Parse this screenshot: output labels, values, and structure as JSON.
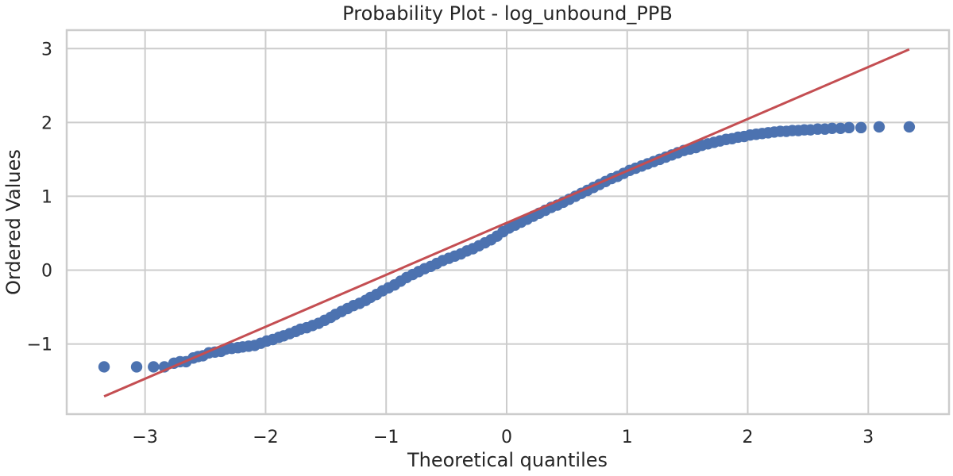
{
  "chart_data": {
    "type": "scatter",
    "title": "Probability Plot - log_unbound_PPB",
    "xlabel": "Theoretical quantiles",
    "ylabel": "Ordered Values",
    "xlim": [
      -3.65,
      3.67
    ],
    "ylim": [
      -1.95,
      3.25
    ],
    "xticks": [
      -3,
      -2,
      -1,
      0,
      1,
      2,
      3
    ],
    "xtick_labels": [
      "−3",
      "−2",
      "−1",
      "0",
      "1",
      "2",
      "3"
    ],
    "yticks": [
      -1,
      0,
      1,
      2,
      3
    ],
    "ytick_labels": [
      "−1",
      "0",
      "1",
      "2",
      "3"
    ],
    "grid": true,
    "legend": "none",
    "colors": {
      "points": "#4c72b0",
      "fit_line": "#c44e52",
      "grid": "#cccccc",
      "text": "#262626"
    },
    "series": [
      {
        "kind": "points",
        "x": [
          -3.34,
          -3.07,
          -2.93,
          -2.84,
          -2.76,
          -2.71,
          -2.66,
          -2.6,
          -2.56,
          -2.52,
          -2.47,
          -2.42,
          -2.37,
          -2.33,
          -2.28,
          -2.23,
          -2.19,
          -2.14,
          -2.09,
          -2.04,
          -1.99,
          -1.94,
          -1.89,
          -1.85,
          -1.8,
          -1.75,
          -1.71,
          -1.66,
          -1.61,
          -1.56,
          -1.51,
          -1.46,
          -1.42,
          -1.37,
          -1.32,
          -1.27,
          -1.22,
          -1.17,
          -1.13,
          -1.08,
          -1.03,
          -0.98,
          -0.93,
          -0.88,
          -0.83,
          -0.78,
          -0.73,
          -0.68,
          -0.63,
          -0.58,
          -0.53,
          -0.48,
          -0.43,
          -0.38,
          -0.33,
          -0.28,
          -0.23,
          -0.18,
          -0.13,
          -0.08,
          -0.03,
          0.02,
          0.07,
          0.12,
          0.17,
          0.22,
          0.27,
          0.32,
          0.37,
          0.42,
          0.47,
          0.52,
          0.57,
          0.62,
          0.67,
          0.72,
          0.77,
          0.82,
          0.87,
          0.92,
          0.97,
          1.02,
          1.07,
          1.12,
          1.17,
          1.22,
          1.27,
          1.32,
          1.37,
          1.42,
          1.47,
          1.52,
          1.57,
          1.62,
          1.67,
          1.72,
          1.77,
          1.82,
          1.87,
          1.92,
          1.97,
          2.02,
          2.07,
          2.12,
          2.17,
          2.22,
          2.27,
          2.32,
          2.37,
          2.42,
          2.47,
          2.52,
          2.58,
          2.64,
          2.7,
          2.77,
          2.84,
          2.94,
          3.09,
          3.34
        ],
        "y": [
          -1.31,
          -1.31,
          -1.31,
          -1.31,
          -1.26,
          -1.24,
          -1.24,
          -1.19,
          -1.17,
          -1.16,
          -1.12,
          -1.11,
          -1.1,
          -1.07,
          -1.06,
          -1.05,
          -1.04,
          -1.03,
          -1.02,
          -0.99,
          -0.96,
          -0.94,
          -0.91,
          -0.89,
          -0.86,
          -0.83,
          -0.8,
          -0.78,
          -0.75,
          -0.72,
          -0.68,
          -0.64,
          -0.6,
          -0.56,
          -0.52,
          -0.48,
          -0.45,
          -0.41,
          -0.37,
          -0.33,
          -0.28,
          -0.24,
          -0.2,
          -0.15,
          -0.1,
          -0.06,
          -0.02,
          0.02,
          0.05,
          0.09,
          0.13,
          0.16,
          0.19,
          0.22,
          0.26,
          0.29,
          0.33,
          0.37,
          0.41,
          0.46,
          0.52,
          0.57,
          0.61,
          0.65,
          0.69,
          0.73,
          0.77,
          0.81,
          0.85,
          0.88,
          0.92,
          0.96,
          1.0,
          1.04,
          1.08,
          1.12,
          1.16,
          1.2,
          1.24,
          1.27,
          1.31,
          1.35,
          1.38,
          1.41,
          1.44,
          1.47,
          1.5,
          1.53,
          1.56,
          1.59,
          1.62,
          1.64,
          1.66,
          1.69,
          1.71,
          1.73,
          1.75,
          1.77,
          1.78,
          1.8,
          1.81,
          1.83,
          1.84,
          1.85,
          1.86,
          1.87,
          1.88,
          1.88,
          1.89,
          1.89,
          1.9,
          1.9,
          1.91,
          1.91,
          1.92,
          1.92,
          1.93,
          1.93,
          1.94,
          1.94
        ]
      },
      {
        "kind": "fit-line",
        "x": [
          -3.34,
          3.34
        ],
        "y": [
          -1.71,
          2.99
        ]
      }
    ]
  }
}
